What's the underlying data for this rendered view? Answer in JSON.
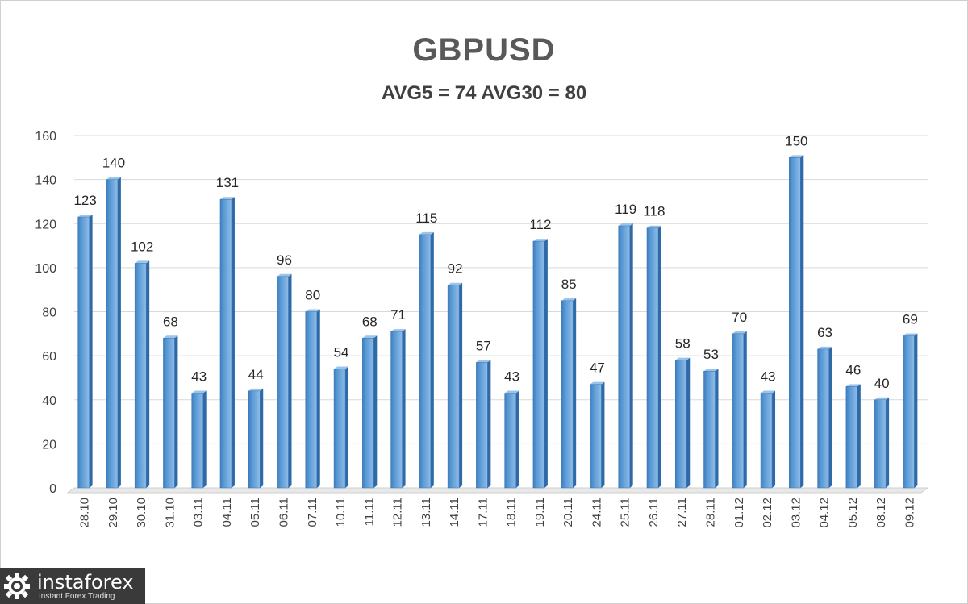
{
  "chart_data": {
    "type": "bar",
    "title": "GBPUSD",
    "subtitle": "AVG5 = 74 AVG30 = 80",
    "categories": [
      "28.10",
      "29.10",
      "30.10",
      "31.10",
      "03.11",
      "04.11",
      "05.11",
      "06.11",
      "07.11",
      "10.11",
      "11.11",
      "12.11",
      "13.11",
      "14.11",
      "17.11",
      "18.11",
      "19.11",
      "20.11",
      "24.11",
      "25.11",
      "26.11",
      "27.11",
      "28.11",
      "01.12",
      "02.12",
      "03.12",
      "04.12",
      "05.12",
      "08.12",
      "09.12"
    ],
    "values": [
      123,
      140,
      102,
      68,
      43,
      131,
      44,
      96,
      80,
      54,
      68,
      71,
      115,
      92,
      57,
      43,
      112,
      85,
      47,
      119,
      118,
      58,
      53,
      70,
      43,
      150,
      63,
      46,
      40,
      69
    ],
    "ylim": [
      0,
      160
    ],
    "yticks": [
      0,
      20,
      40,
      60,
      80,
      100,
      120,
      140,
      160
    ],
    "grid": true,
    "data_labels": true,
    "bar_color": "#5b9bd5",
    "xlabel": "",
    "ylabel": ""
  },
  "logo": {
    "brand": "instaforex",
    "tagline": "Instant Forex Trading"
  }
}
